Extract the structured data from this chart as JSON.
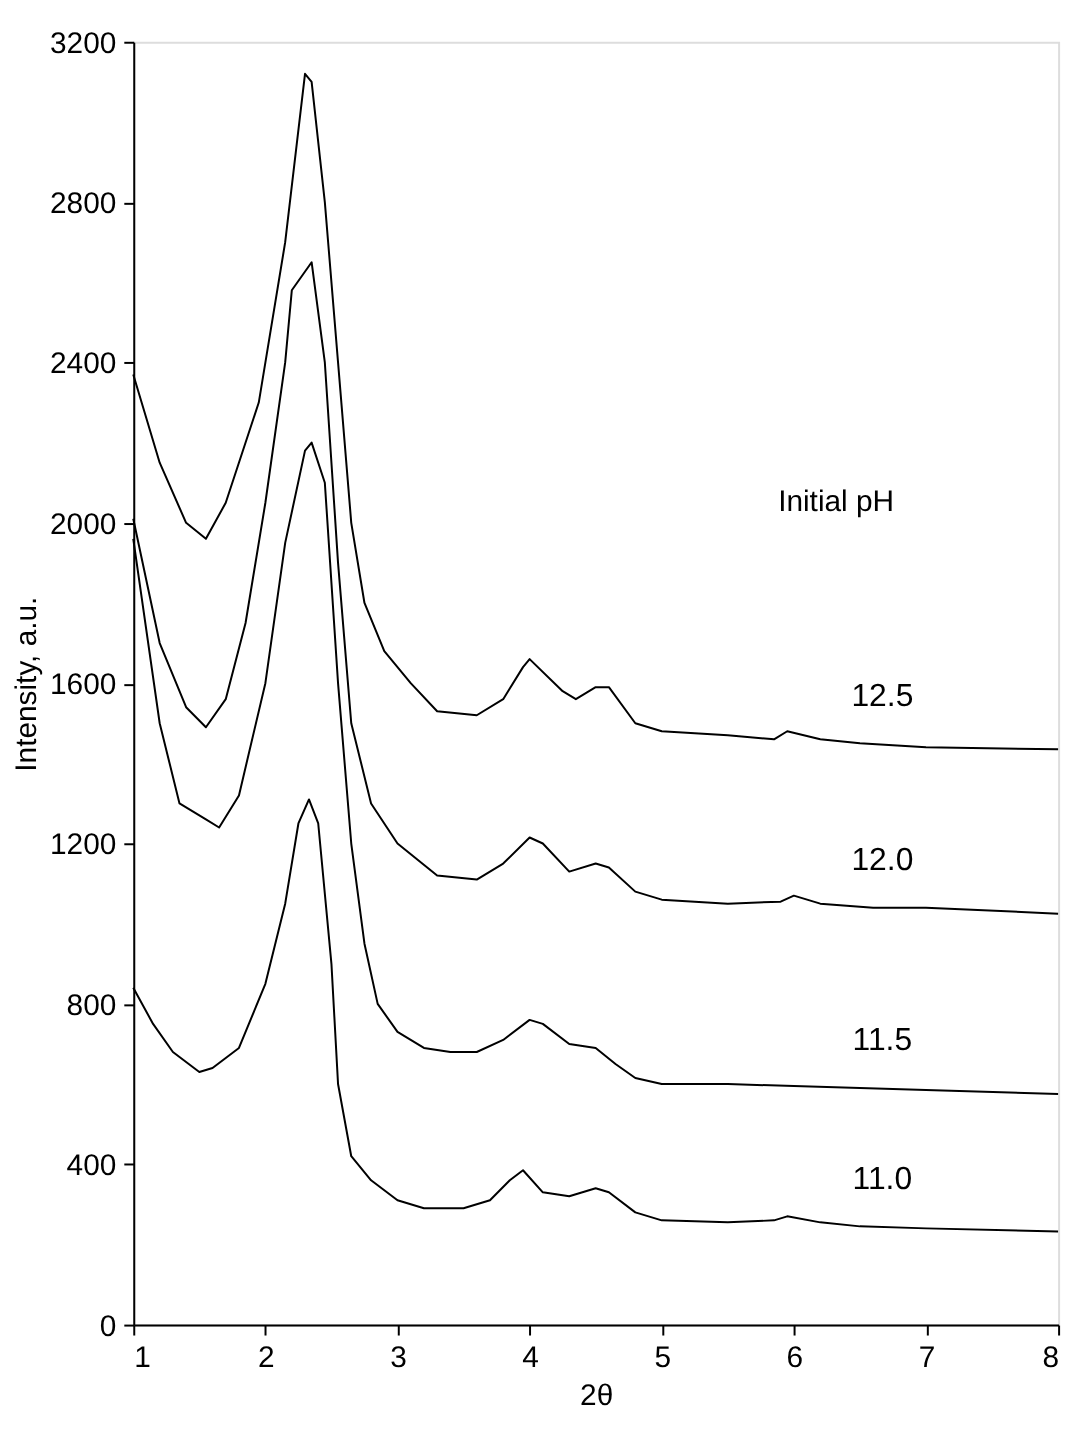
{
  "chart_data": {
    "type": "line",
    "xlabel": "2θ",
    "ylabel": "Intensity, a.u.",
    "legend_title": "Initial pH",
    "xlim": [
      1,
      8
    ],
    "xticks": [
      1,
      2,
      3,
      4,
      5,
      6,
      7,
      8
    ],
    "ylim": [
      0,
      3200
    ],
    "yticks": [
      0,
      400,
      800,
      1200,
      1600,
      2000,
      2400,
      2800,
      3200
    ],
    "grid": false,
    "legend": false,
    "marker": "none",
    "line_style": "solid",
    "series": [
      {
        "name": "12.5",
        "color": "#000000",
        "x": [
          1.0,
          1.2,
          1.4,
          1.55,
          1.7,
          1.95,
          2.15,
          2.3,
          2.35,
          2.45,
          2.55,
          2.65,
          2.75,
          2.9,
          3.1,
          3.3,
          3.6,
          3.8,
          3.95,
          4.0,
          4.25,
          4.35,
          4.5,
          4.6,
          4.8,
          5.0,
          5.5,
          5.85,
          5.95,
          6.2,
          6.5,
          7.0,
          8.0
        ],
        "values": [
          2370,
          2150,
          2000,
          1960,
          2050,
          2300,
          2700,
          3120,
          3100,
          2800,
          2400,
          2000,
          1800,
          1680,
          1600,
          1530,
          1520,
          1560,
          1640,
          1660,
          1580,
          1560,
          1590,
          1590,
          1500,
          1480,
          1470,
          1460,
          1480,
          1460,
          1450,
          1440,
          1435
        ]
      },
      {
        "name": "12.0",
        "color": "#000000",
        "x": [
          1.0,
          1.2,
          1.4,
          1.55,
          1.7,
          1.85,
          2.0,
          2.15,
          2.2,
          2.35,
          2.45,
          2.55,
          2.65,
          2.8,
          3.0,
          3.3,
          3.6,
          3.8,
          4.0,
          4.1,
          4.3,
          4.5,
          4.6,
          4.8,
          5.0,
          5.5,
          5.9,
          6.0,
          6.2,
          6.6,
          7.0,
          8.0
        ],
        "values": [
          2010,
          1700,
          1540,
          1490,
          1560,
          1750,
          2050,
          2400,
          2580,
          2650,
          2400,
          1900,
          1500,
          1300,
          1200,
          1120,
          1110,
          1150,
          1215,
          1200,
          1130,
          1150,
          1140,
          1080,
          1060,
          1050,
          1055,
          1070,
          1050,
          1040,
          1040,
          1025
        ]
      },
      {
        "name": "11.5",
        "color": "#000000",
        "x": [
          1.0,
          1.2,
          1.35,
          1.55,
          1.65,
          1.8,
          2.0,
          2.15,
          2.3,
          2.35,
          2.45,
          2.55,
          2.65,
          2.75,
          2.85,
          3.0,
          3.2,
          3.4,
          3.6,
          3.8,
          4.0,
          4.1,
          4.3,
          4.5,
          4.65,
          4.8,
          5.0,
          5.5,
          6.0,
          6.5,
          7.0,
          8.0
        ],
        "values": [
          1960,
          1500,
          1300,
          1260,
          1240,
          1320,
          1600,
          1950,
          2180,
          2200,
          2100,
          1600,
          1200,
          950,
          800,
          730,
          690,
          680,
          680,
          710,
          760,
          750,
          700,
          690,
          650,
          615,
          600,
          600,
          595,
          590,
          585,
          575
        ]
      },
      {
        "name": "11.0",
        "color": "#000000",
        "x": [
          1.0,
          1.15,
          1.3,
          1.5,
          1.6,
          1.8,
          2.0,
          2.15,
          2.25,
          2.33,
          2.4,
          2.5,
          2.55,
          2.65,
          2.8,
          3.0,
          3.2,
          3.5,
          3.7,
          3.85,
          3.95,
          4.1,
          4.3,
          4.5,
          4.6,
          4.8,
          5.0,
          5.5,
          5.85,
          5.95,
          6.2,
          6.5,
          7.0,
          8.0
        ],
        "values": [
          840,
          750,
          680,
          630,
          640,
          690,
          850,
          1050,
          1250,
          1310,
          1250,
          900,
          600,
          420,
          360,
          310,
          290,
          290,
          310,
          360,
          385,
          330,
          320,
          340,
          330,
          280,
          260,
          255,
          260,
          270,
          255,
          245,
          240,
          232
        ]
      }
    ]
  }
}
